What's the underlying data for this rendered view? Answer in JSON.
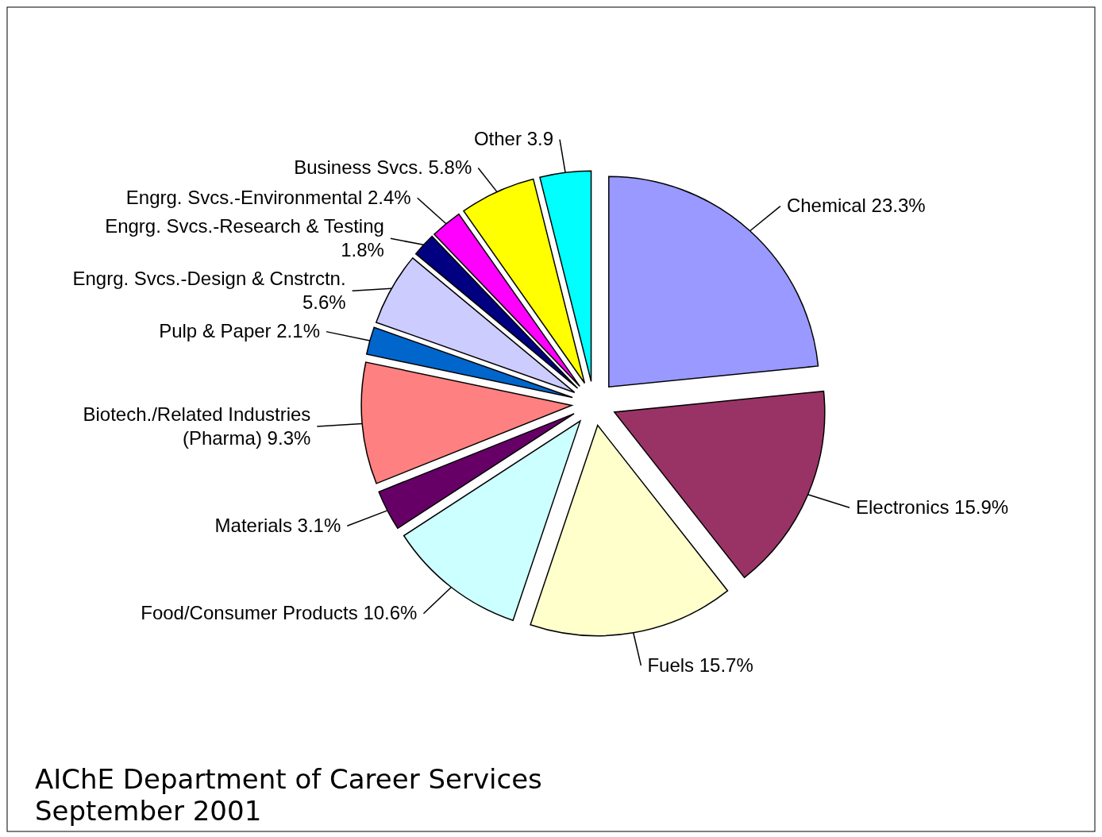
{
  "chart_data": {
    "type": "pie",
    "title": "AIChE Department of Career Services",
    "subtitle": "September 2001",
    "categories": [
      "Chemical",
      "Electronics",
      "Fuels",
      "Food/Consumer Products",
      "Materials",
      "Biotech./Related Industries (Pharma)",
      "Pulp & Paper",
      "Engrg. Svcs.-Design & Cnstrctn.",
      "Engrg. Svcs.-Research & Testing",
      "Engrg. Svcs.-Environmental",
      "Business Svcs.",
      "Other"
    ],
    "values": [
      23.3,
      15.9,
      15.7,
      10.6,
      3.1,
      9.3,
      2.1,
      5.6,
      1.8,
      2.4,
      5.8,
      3.9
    ],
    "value_labels": [
      "23.3%",
      "15.9%",
      "15.7%",
      "10.6%",
      "3.1%",
      "9.3%",
      "2.1%",
      "5.6%",
      "1.8%",
      "2.4%",
      "5.8%",
      "3.9"
    ],
    "colors": [
      "#9999ff",
      "#993366",
      "#ffffcc",
      "#ccffff",
      "#660066",
      "#ff8080",
      "#0066cc",
      "#ccccff",
      "#000080",
      "#ff00ff",
      "#ffff00",
      "#00ffff"
    ]
  }
}
